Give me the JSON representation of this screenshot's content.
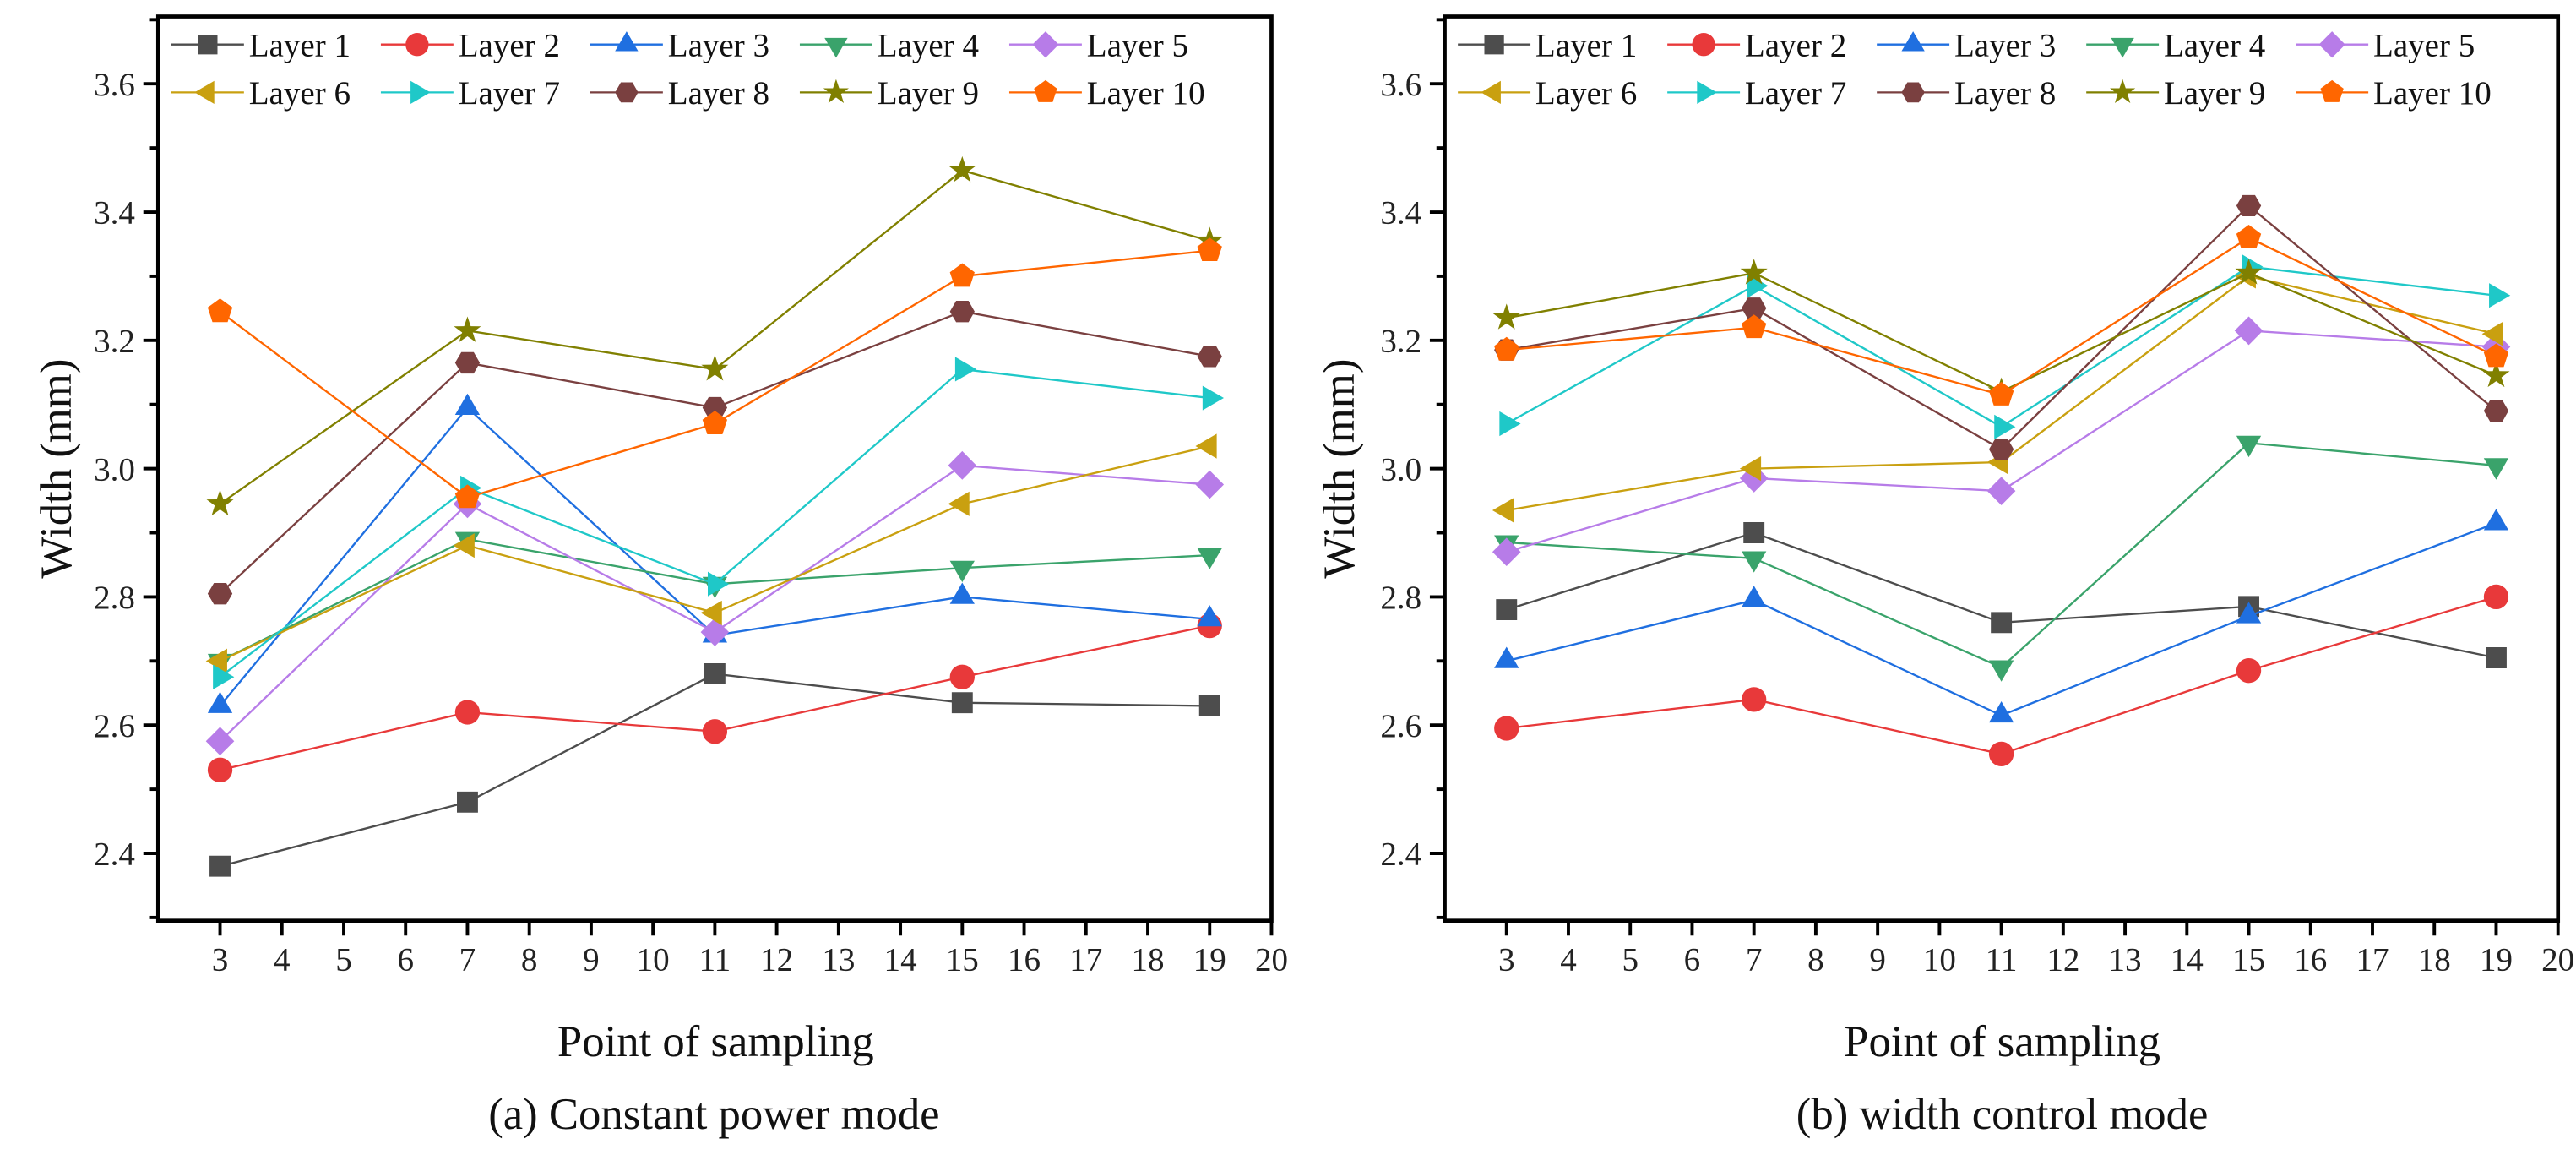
{
  "chart_data": [
    {
      "type": "line",
      "title": "",
      "caption": "(a) Constant power mode",
      "xlabel": "Point of sampling",
      "ylabel": "Width  (mm)",
      "xlim": [
        2,
        20
      ],
      "ylim": [
        2.295,
        3.705
      ],
      "xticks": [
        3,
        4,
        5,
        6,
        7,
        8,
        9,
        10,
        11,
        12,
        13,
        14,
        15,
        16,
        17,
        18,
        19,
        20
      ],
      "yticks": [
        "2.4",
        "2.6",
        "2.8",
        "3.0",
        "3.2",
        "3.4",
        "3.6"
      ],
      "legend_position": "top",
      "x": [
        3,
        7,
        11,
        15,
        19
      ],
      "series": [
        {
          "name": "Layer 1",
          "values": [
            2.38,
            2.48,
            2.68,
            2.635,
            2.63
          ]
        },
        {
          "name": "Layer  2",
          "values": [
            2.53,
            2.62,
            2.59,
            2.675,
            2.755
          ]
        },
        {
          "name": "Layer 3",
          "values": [
            2.63,
            3.095,
            2.74,
            2.8,
            2.765
          ]
        },
        {
          "name": "Layer 4",
          "values": [
            2.7,
            2.89,
            2.82,
            2.845,
            2.865
          ]
        },
        {
          "name": "Layer 5",
          "values": [
            2.575,
            2.945,
            2.745,
            3.005,
            2.975
          ]
        },
        {
          "name": "Layer 6",
          "values": [
            2.7,
            2.88,
            2.775,
            2.945,
            3.035
          ]
        },
        {
          "name": "Layer  7",
          "values": [
            2.675,
            2.97,
            2.82,
            3.155,
            3.11
          ]
        },
        {
          "name": "Layer 8",
          "values": [
            2.805,
            3.165,
            3.095,
            3.245,
            3.175
          ]
        },
        {
          "name": "Layer 9",
          "values": [
            2.945,
            3.215,
            3.155,
            3.465,
            3.355
          ]
        },
        {
          "name": "Layer 10",
          "values": [
            3.245,
            2.955,
            3.07,
            3.3,
            3.34
          ]
        }
      ]
    },
    {
      "type": "line",
      "title": "",
      "caption": "(b) width control mode",
      "xlabel": "Point of sampling",
      "ylabel": "Width  (mm)",
      "xlim": [
        2,
        20
      ],
      "ylim": [
        2.295,
        3.705
      ],
      "xticks": [
        3,
        4,
        5,
        6,
        7,
        8,
        9,
        10,
        11,
        12,
        13,
        14,
        15,
        16,
        17,
        18,
        19,
        20
      ],
      "yticks": [
        "2.4",
        "2.6",
        "2.8",
        "3.0",
        "3.2",
        "3.4",
        "3.6"
      ],
      "legend_position": "top",
      "x": [
        3,
        7,
        11,
        15,
        19
      ],
      "series": [
        {
          "name": "Layer 1",
          "values": [
            2.78,
            2.9,
            2.76,
            2.785,
            2.705
          ]
        },
        {
          "name": "Layer  2",
          "values": [
            2.595,
            2.64,
            2.555,
            2.685,
            2.8
          ]
        },
        {
          "name": "Layer 3",
          "values": [
            2.7,
            2.795,
            2.615,
            2.77,
            2.915
          ]
        },
        {
          "name": "Layer 4",
          "values": [
            2.885,
            2.86,
            2.69,
            3.04,
            3.005
          ]
        },
        {
          "name": "Layer 5",
          "values": [
            2.87,
            2.985,
            2.965,
            3.215,
            3.19
          ]
        },
        {
          "name": "Layer 6",
          "values": [
            2.935,
            3.0,
            3.01,
            3.3,
            3.21
          ]
        },
        {
          "name": "Layer  7",
          "values": [
            3.07,
            3.285,
            3.065,
            3.315,
            3.27
          ]
        },
        {
          "name": "Layer 8",
          "values": [
            3.185,
            3.25,
            3.03,
            3.41,
            3.09
          ]
        },
        {
          "name": "Layer 9",
          "values": [
            3.235,
            3.305,
            3.12,
            3.305,
            3.145
          ]
        },
        {
          "name": "Layer 10",
          "values": [
            3.185,
            3.22,
            3.115,
            3.36,
            3.175
          ]
        }
      ]
    }
  ],
  "series_style": [
    {
      "color": "#4d4d4d",
      "marker": "square"
    },
    {
      "color": "#e8393a",
      "marker": "circle"
    },
    {
      "color": "#1f6fe0",
      "marker": "triangle-up"
    },
    {
      "color": "#3aa36b",
      "marker": "triangle-down"
    },
    {
      "color": "#b77ce8",
      "marker": "diamond"
    },
    {
      "color": "#c9a010",
      "marker": "triangle-left"
    },
    {
      "color": "#1fc8c8",
      "marker": "triangle-right"
    },
    {
      "color": "#7a4040",
      "marker": "hexagon"
    },
    {
      "color": "#808000",
      "marker": "star"
    },
    {
      "color": "#ff6600",
      "marker": "pentagon"
    }
  ]
}
